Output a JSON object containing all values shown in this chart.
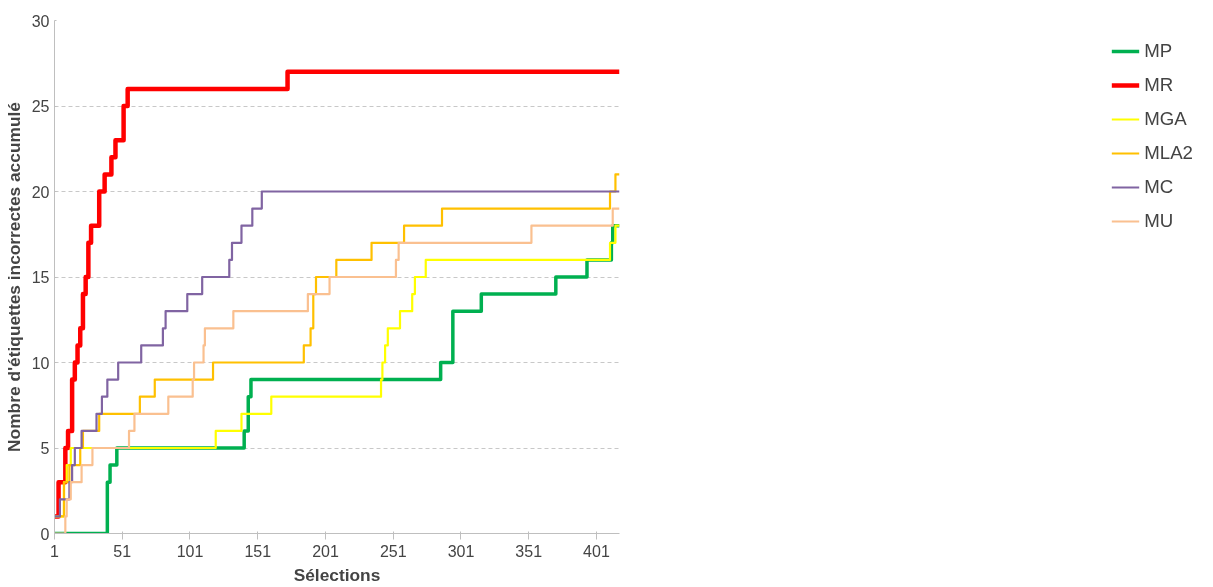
{
  "chart_data": {
    "type": "step",
    "xlabel": "Sélections",
    "ylabel": "Nombre d'étiquettes incorrectes accumulé",
    "xlim": [
      1,
      418
    ],
    "ylim": [
      0,
      30
    ],
    "xticks": [
      1,
      51,
      101,
      151,
      201,
      251,
      301,
      351,
      401
    ],
    "yticks": [
      0,
      5,
      10,
      15,
      20,
      25,
      30
    ],
    "grid": "y",
    "legend": "right",
    "marker": "none",
    "line_style": "solid",
    "series": [
      {
        "name": "MP",
        "color": "#00b050",
        "x": [
          1,
          40,
          42,
          47,
          141,
          144,
          146,
          286,
          289,
          295,
          316,
          371,
          394,
          412,
          413,
          418
        ],
        "values": [
          0,
          3,
          4,
          5,
          6,
          8,
          9,
          10,
          10,
          13,
          14,
          15,
          16,
          17,
          18,
          18
        ]
      },
      {
        "name": "MR",
        "color": "#ff0000",
        "x": [
          1,
          4,
          9,
          11,
          14,
          16,
          18,
          20,
          22,
          24,
          26,
          28,
          34,
          38,
          43,
          46,
          52,
          55,
          173,
          418
        ],
        "values": [
          1,
          3,
          5,
          6,
          9,
          10,
          11,
          12,
          14,
          15,
          17,
          18,
          20,
          21,
          22,
          23,
          25,
          26,
          27,
          27
        ]
      },
      {
        "name": "MGA",
        "color": "#ffff00",
        "x": [
          1,
          8,
          10,
          13,
          120,
          139,
          161,
          242,
          243,
          245,
          247,
          256,
          265,
          267,
          275,
          411,
          415,
          418
        ],
        "values": [
          1,
          3,
          4,
          5,
          6,
          7,
          8,
          9,
          10,
          11,
          12,
          13,
          14,
          15,
          16,
          17,
          18,
          18
        ]
      },
      {
        "name": "MLA2",
        "color": "#ffc000",
        "x": [
          1,
          8,
          12,
          20,
          22,
          34,
          64,
          75,
          118,
          185,
          190,
          192,
          194,
          209,
          235,
          259,
          287,
          411,
          415,
          418
        ],
        "values": [
          1,
          3,
          4,
          5,
          6,
          7,
          8,
          9,
          10,
          11,
          12,
          14,
          15,
          16,
          17,
          18,
          19,
          20,
          21,
          21
        ]
      },
      {
        "name": "MC",
        "color": "#8064a2",
        "x": [
          1,
          5,
          12,
          14,
          16,
          21,
          32,
          36,
          40,
          48,
          65,
          81,
          83,
          99,
          110,
          130,
          132,
          139,
          147,
          154,
          418
        ],
        "values": [
          1,
          2,
          3,
          4,
          5,
          6,
          7,
          8,
          9,
          10,
          11,
          12,
          13,
          14,
          15,
          16,
          17,
          18,
          19,
          20,
          20
        ]
      },
      {
        "name": "MU",
        "color": "#fac090",
        "x": [
          1,
          9,
          10,
          13,
          21,
          29,
          56,
          60,
          85,
          103,
          104,
          111,
          112,
          133,
          188,
          204,
          253,
          255,
          353,
          413,
          418
        ],
        "values": [
          0,
          1,
          2,
          3,
          4,
          5,
          6,
          7,
          8,
          9,
          10,
          11,
          12,
          13,
          14,
          15,
          16,
          17,
          18,
          19,
          19
        ]
      }
    ]
  }
}
